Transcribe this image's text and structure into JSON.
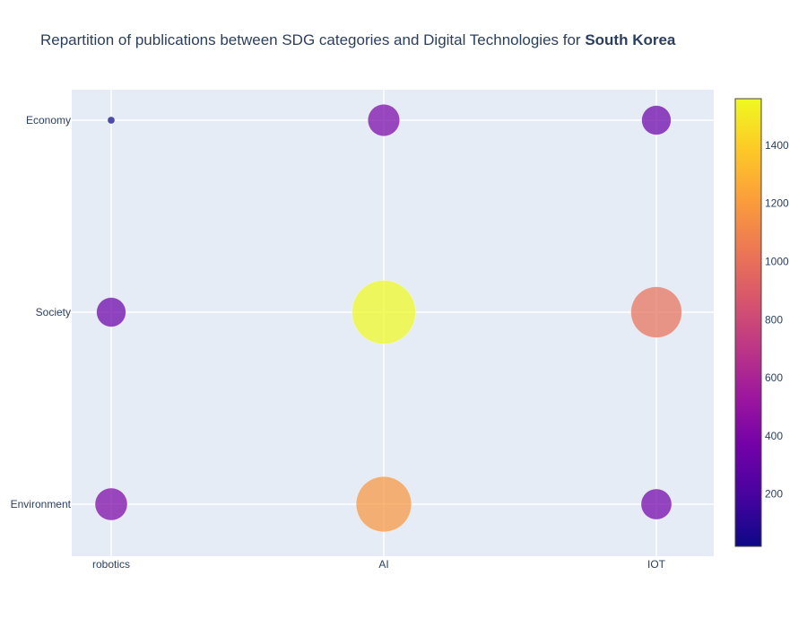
{
  "chart_data": {
    "type": "scatter",
    "title": {
      "prefix": "Repartition of publications between SDG categories and Digital Technologies for ",
      "bold": "South Korea"
    },
    "xlabel": "",
    "ylabel": "",
    "x_categories": [
      "robotics",
      "AI",
      "IOT"
    ],
    "y_categories": [
      "Environment",
      "Society",
      "Economy"
    ],
    "points": [
      {
        "x": "robotics",
        "y": "Economy",
        "value": 20
      },
      {
        "x": "AI",
        "y": "Economy",
        "value": 390
      },
      {
        "x": "IOT",
        "y": "Economy",
        "value": 330
      },
      {
        "x": "robotics",
        "y": "Society",
        "value": 330
      },
      {
        "x": "AI",
        "y": "Society",
        "value": 1560
      },
      {
        "x": "IOT",
        "y": "Society",
        "value": 1000
      },
      {
        "x": "robotics",
        "y": "Environment",
        "value": 400
      },
      {
        "x": "AI",
        "y": "Environment",
        "value": 1180
      },
      {
        "x": "IOT",
        "y": "Environment",
        "value": 360
      }
    ],
    "colorbar": {
      "min": 20,
      "max": 1560,
      "ticks": [
        200,
        400,
        600,
        800,
        1000,
        1200,
        1400
      ],
      "colorscale": [
        "#0d0887",
        "#46039f",
        "#7201a8",
        "#9c179e",
        "#bd3786",
        "#d8576b",
        "#ed7953",
        "#fb9f3a",
        "#fdca26",
        "#f0f921"
      ]
    },
    "grid": true,
    "plot_background": "#e5ecf6",
    "grid_color": "#ffffff",
    "text_color": "#2a3f5f"
  }
}
